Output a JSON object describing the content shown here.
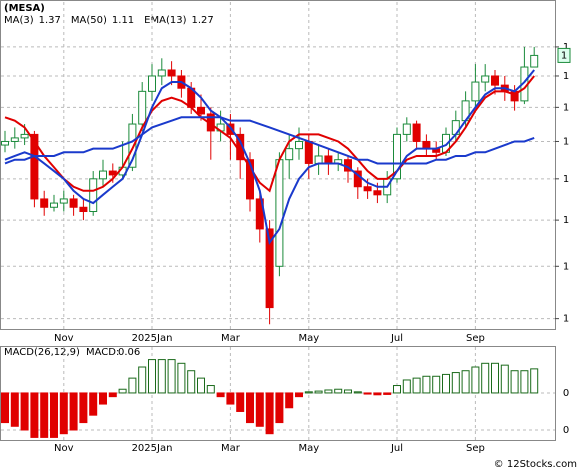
{
  "chart_data": {
    "type": "candlestick",
    "title": "(MESA)",
    "legend": [
      {
        "name": "MA(3)",
        "value": "1.37",
        "color": "#1a8a3a"
      },
      {
        "name": "MA(50)",
        "value": "1.11",
        "color": "#1a3acc"
      },
      {
        "name": "EMA(13)",
        "value": "1.27",
        "color": "#1a3acc"
      }
    ],
    "categories": [
      null,
      null,
      null,
      null,
      null,
      null,
      "Nov",
      null,
      null,
      null,
      null,
      null,
      null,
      null,
      null,
      "2025Jan",
      null,
      null,
      null,
      null,
      null,
      null,
      null,
      "Mar",
      null,
      null,
      null,
      null,
      null,
      null,
      null,
      "May",
      null,
      null,
      null,
      null,
      null,
      null,
      null,
      null,
      "Jul",
      null,
      null,
      null,
      null,
      null,
      null,
      null,
      "Sep",
      null,
      null,
      null,
      null,
      null,
      null
    ],
    "open": [
      1.09,
      1.1,
      1.11,
      1.12,
      0.95,
      0.93,
      0.94,
      0.95,
      0.93,
      0.92,
      1.0,
      1.02,
      1.01,
      1.03,
      1.15,
      1.25,
      1.3,
      1.32,
      1.3,
      1.26,
      1.2,
      1.18,
      1.13,
      1.15,
      1.12,
      1.05,
      0.95,
      0.88,
      0.8,
      1.05,
      1.08,
      1.1,
      1.04,
      1.06,
      1.04,
      1.05,
      1.02,
      0.98,
      0.97,
      0.96,
      1.0,
      1.12,
      1.15,
      1.1,
      1.08,
      1.07,
      1.12,
      1.16,
      1.22,
      1.28,
      1.3,
      1.27,
      1.25,
      1.22,
      1.33
    ],
    "high": [
      1.13,
      1.14,
      1.15,
      1.13,
      0.97,
      0.96,
      0.97,
      0.96,
      0.95,
      1.02,
      1.05,
      1.04,
      1.1,
      1.18,
      1.28,
      1.34,
      1.36,
      1.35,
      1.32,
      1.28,
      1.24,
      1.2,
      1.19,
      1.18,
      1.14,
      1.07,
      0.97,
      0.9,
      1.07,
      1.12,
      1.14,
      1.12,
      1.09,
      1.08,
      1.07,
      1.06,
      1.03,
      1.0,
      0.99,
      1.02,
      1.14,
      1.17,
      1.16,
      1.12,
      1.1,
      1.14,
      1.19,
      1.25,
      1.34,
      1.34,
      1.32,
      1.3,
      1.27,
      1.4,
      1.4
    ],
    "low": [
      1.07,
      1.08,
      1.09,
      0.93,
      0.91,
      0.92,
      0.92,
      0.91,
      0.9,
      0.91,
      0.98,
      0.99,
      1.0,
      1.02,
      1.13,
      1.22,
      1.27,
      1.27,
      1.23,
      1.18,
      1.16,
      1.05,
      1.1,
      1.05,
      1.0,
      0.92,
      0.85,
      0.69,
      0.78,
      1.0,
      1.05,
      1.0,
      1.01,
      1.01,
      1.02,
      0.99,
      0.95,
      0.95,
      0.94,
      0.94,
      0.99,
      1.1,
      1.08,
      1.06,
      1.05,
      1.06,
      1.1,
      1.14,
      1.2,
      1.25,
      1.24,
      1.22,
      1.19,
      1.21,
      1.33
    ],
    "close": [
      1.1,
      1.11,
      1.12,
      0.95,
      0.93,
      0.94,
      0.95,
      0.93,
      0.92,
      1.0,
      1.02,
      1.01,
      1.03,
      1.15,
      1.25,
      1.3,
      1.32,
      1.3,
      1.26,
      1.2,
      1.18,
      1.13,
      1.15,
      1.12,
      1.05,
      0.95,
      0.88,
      0.72,
      1.05,
      1.08,
      1.1,
      1.04,
      1.06,
      1.04,
      1.05,
      1.02,
      0.98,
      0.97,
      0.96,
      1.0,
      1.12,
      1.15,
      1.1,
      1.08,
      1.07,
      1.12,
      1.16,
      1.22,
      1.28,
      1.3,
      1.27,
      1.25,
      1.22,
      1.33,
      1.37
    ],
    "up_color": "#1a8a3a",
    "down_color": "#e00000",
    "overlays": [
      {
        "color": "#e00000",
        "values": [
          1.17,
          1.16,
          1.14,
          1.1,
          1.06,
          1.03,
          1.0,
          0.98,
          0.97,
          0.97,
          0.98,
          1.0,
          1.03,
          1.08,
          1.14,
          1.19,
          1.22,
          1.23,
          1.22,
          1.2,
          1.17,
          1.15,
          1.13,
          1.11,
          1.07,
          1.03,
          0.99,
          0.97,
          1.05,
          1.1,
          1.12,
          1.12,
          1.12,
          1.11,
          1.1,
          1.08,
          1.05,
          1.02,
          1.0,
          1.0,
          1.02,
          1.05,
          1.06,
          1.06,
          1.06,
          1.07,
          1.1,
          1.14,
          1.19,
          1.23,
          1.25,
          1.25,
          1.24,
          1.26,
          1.3
        ]
      },
      {
        "color": "#1a3acc",
        "values": [
          1.05,
          1.06,
          1.07,
          1.06,
          1.04,
          1.02,
          1.0,
          0.97,
          0.95,
          0.94,
          0.96,
          0.98,
          1.0,
          1.05,
          1.12,
          1.2,
          1.26,
          1.28,
          1.28,
          1.26,
          1.23,
          1.19,
          1.17,
          1.14,
          1.1,
          1.04,
          0.97,
          0.85,
          0.88,
          0.95,
          1.0,
          1.03,
          1.04,
          1.04,
          1.04,
          1.03,
          1.01,
          0.99,
          0.98,
          0.98,
          1.02,
          1.06,
          1.08,
          1.08,
          1.08,
          1.09,
          1.12,
          1.16,
          1.2,
          1.24,
          1.26,
          1.26,
          1.25,
          1.28,
          1.32
        ]
      },
      {
        "color": "#1a3acc",
        "values": [
          1.04,
          1.05,
          1.05,
          1.06,
          1.06,
          1.06,
          1.07,
          1.07,
          1.07,
          1.08,
          1.08,
          1.08,
          1.09,
          1.1,
          1.12,
          1.14,
          1.15,
          1.16,
          1.17,
          1.17,
          1.17,
          1.17,
          1.17,
          1.16,
          1.16,
          1.16,
          1.15,
          1.14,
          1.13,
          1.12,
          1.11,
          1.1,
          1.09,
          1.08,
          1.07,
          1.06,
          1.05,
          1.05,
          1.04,
          1.04,
          1.04,
          1.04,
          1.04,
          1.04,
          1.05,
          1.05,
          1.06,
          1.06,
          1.07,
          1.07,
          1.08,
          1.09,
          1.1,
          1.1,
          1.11
        ]
      }
    ],
    "ylim": [
      0.68,
      1.57
    ],
    "log_scale": true,
    "grid": true,
    "yticks": [
      {
        "value": 1.4,
        "label": "1"
      },
      {
        "value": 1.3,
        "label": "1"
      },
      {
        "value": 1.2,
        "label": "1"
      },
      {
        "value": 1.1,
        "label": "1"
      },
      {
        "value": 1.0,
        "label": "1"
      },
      {
        "value": 0.9,
        "label": "1"
      },
      {
        "value": 0.8,
        "label": "1"
      },
      {
        "value": 0.7,
        "label": "1"
      }
    ],
    "last_price": {
      "value": 1.37,
      "label": "1",
      "color": "#1a8a3a"
    },
    "macd": {
      "title": "MACD(26,12,9)",
      "label": "MACD:",
      "value": "0.06",
      "value_color": "#1a3acc",
      "ylim": [
        -0.127,
        0.124
      ],
      "yticks": [
        0,
        {
          "value": -0.1,
          "label": "0"
        }
      ],
      "values": [
        -0.08,
        -0.09,
        -0.1,
        -0.12,
        -0.12,
        -0.12,
        -0.11,
        -0.1,
        -0.08,
        -0.06,
        -0.03,
        -0.01,
        0.01,
        0.04,
        0.07,
        0.09,
        0.09,
        0.09,
        0.08,
        0.06,
        0.04,
        0.02,
        -0.01,
        -0.03,
        -0.05,
        -0.08,
        -0.09,
        -0.11,
        -0.08,
        -0.04,
        -0.01,
        0.003,
        0.005,
        0.008,
        0.01,
        0.008,
        0.003,
        -0.003,
        -0.005,
        -0.004,
        0.02,
        0.035,
        0.04,
        0.045,
        0.045,
        0.05,
        0.055,
        0.06,
        0.07,
        0.08,
        0.08,
        0.075,
        0.06,
        0.06,
        0.065
      ],
      "pos_color": "#1a6a1a",
      "neg_color": "#e00000"
    },
    "watermark": "© 12Stocks.com"
  }
}
